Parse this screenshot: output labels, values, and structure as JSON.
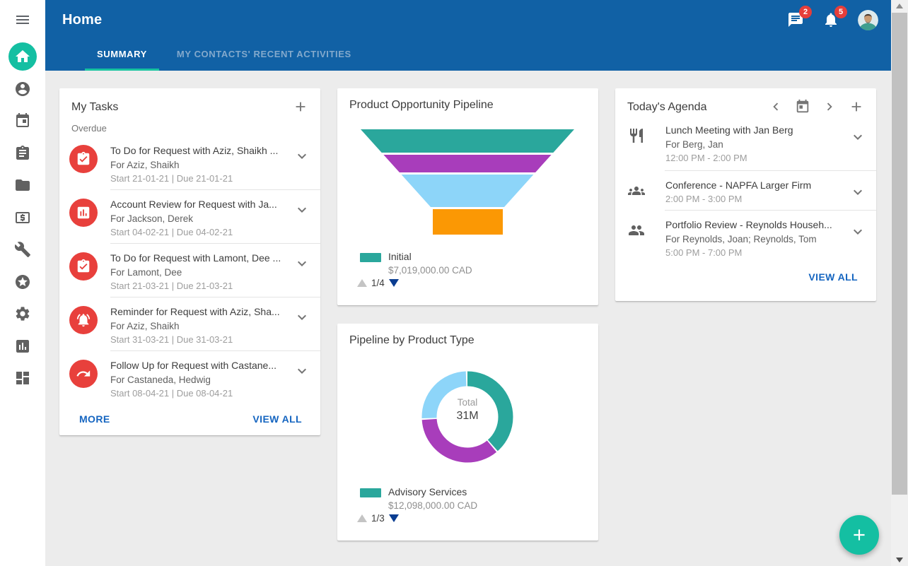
{
  "header": {
    "title": "Home",
    "tabs": [
      {
        "label": "SUMMARY",
        "active": true
      },
      {
        "label": "MY CONTACTS' RECENT ACTIVITIES",
        "active": false
      }
    ],
    "messages_badge": "2",
    "notifications_badge": "5",
    "icons": [
      "chat-icon",
      "bell-icon",
      "avatar"
    ]
  },
  "sidebar": {
    "icons": [
      {
        "icon": "menu-icon"
      },
      {
        "icon": "home-icon",
        "active": true
      },
      {
        "icon": "contacts-icon"
      },
      {
        "icon": "calendar-icon"
      },
      {
        "icon": "tasks-icon"
      },
      {
        "icon": "documents-icon"
      },
      {
        "icon": "accounts-icon"
      },
      {
        "icon": "tools-icon"
      },
      {
        "icon": "favorites-icon"
      },
      {
        "icon": "settings-icon"
      },
      {
        "icon": "reports-icon"
      },
      {
        "icon": "dashboard-icon"
      }
    ]
  },
  "tasks_card": {
    "title": "My Tasks",
    "section_label": "Overdue",
    "more_label": "MORE",
    "view_all_label": "VIEW ALL",
    "items": [
      {
        "icon": "assignment-turned-in-icon",
        "title": "To Do for Request with Aziz, Shaikh ...",
        "for": "For Aziz, Shaikh",
        "dates": "Start 21-01-21 | Due 21-01-21"
      },
      {
        "icon": "assessment-icon",
        "title": "Account Review for Request with Ja...",
        "for": "For Jackson, Derek",
        "dates": "Start 04-02-21 | Due 04-02-21"
      },
      {
        "icon": "assignment-turned-in-icon",
        "title": "To Do for Request with Lamont, Dee ...",
        "for": "For Lamont, Dee",
        "dates": "Start 21-03-21 | Due 21-03-21"
      },
      {
        "icon": "reminder-bell-icon",
        "title": "Reminder for Request with Aziz, Sha...",
        "for": "For Aziz, Shaikh",
        "dates": "Start 31-03-21 | Due 31-03-21"
      },
      {
        "icon": "follow-up-arrow-icon",
        "title": "Follow Up for Request with Castane...",
        "for": "For Castaneda, Hedwig",
        "dates": "Start 08-04-21 | Due 08-04-21"
      }
    ]
  },
  "agenda_card": {
    "title": "Today's Agenda",
    "header_icons": [
      "chevron-left-icon",
      "today-calendar-icon",
      "chevron-right-icon",
      "plus-icon"
    ],
    "view_all_label": "VIEW ALL",
    "items": [
      {
        "icon": "meal-icon",
        "title": "Lunch Meeting with Jan Berg",
        "for": "For Berg, Jan",
        "time": "12:00 PM - 2:00 PM"
      },
      {
        "icon": "groups-icon",
        "title": "Conference - NAPFA Larger Firm",
        "for": "",
        "time": "2:00 PM - 3:00 PM"
      },
      {
        "icon": "people-icon",
        "title": "Portfolio Review - Reynolds Househ...",
        "for": "For Reynolds, Joan; Reynolds, Tom",
        "time": "5:00 PM - 7:00 PM"
      }
    ]
  },
  "chart_data": [
    {
      "type": "funnel",
      "title": "Product Opportunity Pipeline",
      "stages": [
        {
          "name": "Initial",
          "value_label": "$7,019,000.00 CAD",
          "color": "#2AA79C"
        },
        {
          "name": "",
          "color": "#A83DBB"
        },
        {
          "name": "",
          "color": "#8DD5F9"
        },
        {
          "name": "",
          "color": "#FB9804"
        }
      ],
      "legend": {
        "name": "Initial",
        "value_label": "$7,019,000.00 CAD",
        "color": "#2AA79C"
      },
      "pagination": "1/4"
    },
    {
      "type": "pie",
      "title": "Pipeline by Product Type",
      "center_label": "Total",
      "center_value": "31M",
      "segments": [
        {
          "name": "Advisory Services",
          "value_label": "$12,098,000.00 CAD",
          "color": "#2AA79C",
          "fraction": 0.39
        },
        {
          "name": "",
          "color": "#A83DBB",
          "fraction": 0.355
        },
        {
          "name": "",
          "color": "#8DD5F9",
          "fraction": 0.255
        }
      ],
      "legend": {
        "name": "Advisory Services",
        "value_label": "$12,098,000.00 CAD",
        "color": "#2AA79C"
      },
      "pagination": "1/3"
    }
  ],
  "colors": {
    "header_blue": "#1161A5",
    "accent_teal": "#14BFA2",
    "tab_underline": "#17C4A0",
    "task_red": "#E8403C",
    "link_blue": "#1565C0",
    "badge_red": "#E53E3A",
    "page_bg": "#ECECEC",
    "pager_down_blue": "#0A3D91"
  }
}
